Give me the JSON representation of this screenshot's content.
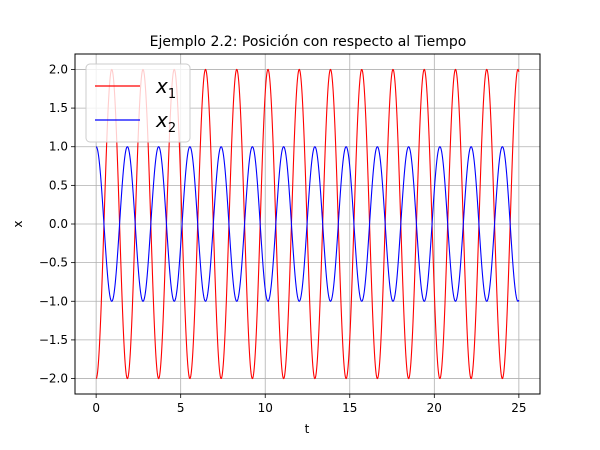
{
  "chart_data": {
    "type": "line",
    "title": "Ejemplo 2.2: Posición con respecto al Tiempo",
    "xlabel": "t",
    "ylabel": "x",
    "xlim": [
      -1.25,
      26.25
    ],
    "ylim": [
      -2.2,
      2.2
    ],
    "xticks": [
      0,
      5,
      10,
      15,
      20,
      25
    ],
    "yticks": [
      -2.0,
      -1.5,
      -1.0,
      -0.5,
      0.0,
      0.5,
      1.0,
      1.5,
      2.0
    ],
    "xtick_labels": [
      "0",
      "5",
      "10",
      "15",
      "20",
      "25"
    ],
    "ytick_labels": [
      "−2.0",
      "−1.5",
      "−1.0",
      "−0.5",
      "0.0",
      "0.5",
      "1.0",
      "1.5",
      "2.0"
    ],
    "grid": true,
    "legend_position": "top-left",
    "t_range": [
      0,
      25
    ],
    "series": [
      {
        "legend_base": "x",
        "legend_sub": "1",
        "color": "#ff0000",
        "function": "-2*cos(3.4*t)",
        "amplitude": 2,
        "angular_frequency": 3.4,
        "phase": 3.14159
      },
      {
        "legend_base": "x",
        "legend_sub": "2",
        "color": "#0000ff",
        "function": "cos(3.4*t)",
        "amplitude": 1,
        "angular_frequency": 3.4,
        "phase": 0
      }
    ]
  }
}
